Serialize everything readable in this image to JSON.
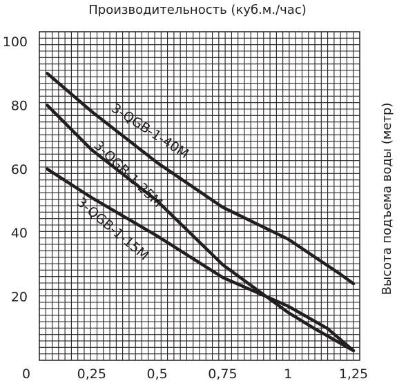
{
  "chart_data": {
    "type": "line",
    "title": "",
    "xlabel": "Производительность (куб.м./час)",
    "ylabel": "Высота подъема воды (метр)",
    "xlim": [
      0,
      1.25
    ],
    "ylim": [
      0,
      100
    ],
    "x_ticks": [
      "0",
      "0,25",
      "0,5",
      "0,75",
      "1",
      "1,25"
    ],
    "y_ticks": [
      "100",
      "80",
      "60",
      "40",
      "20"
    ],
    "grid": true,
    "series": [
      {
        "name": "3-QGB-1-40M",
        "x": [
          0.08,
          0.25,
          0.5,
          0.75,
          1.0,
          1.2,
          1.25
        ],
        "y": [
          90,
          78,
          62,
          48,
          38,
          27,
          24
        ]
      },
      {
        "name": "3-QGB-1-25M",
        "x": [
          0.08,
          0.25,
          0.5,
          0.75,
          1.0,
          1.1,
          1.25
        ],
        "y": [
          80,
          66,
          50,
          30,
          15,
          10,
          3
        ]
      },
      {
        "name": "3-QGB-1-15M",
        "x": [
          0.08,
          0.25,
          0.5,
          0.75,
          1.0,
          1.15,
          1.25
        ],
        "y": [
          60,
          51,
          39,
          26,
          17,
          10,
          3
        ]
      }
    ],
    "colors": {
      "line": "#231f20",
      "grid": "#231f20",
      "text": "#231f20"
    }
  }
}
